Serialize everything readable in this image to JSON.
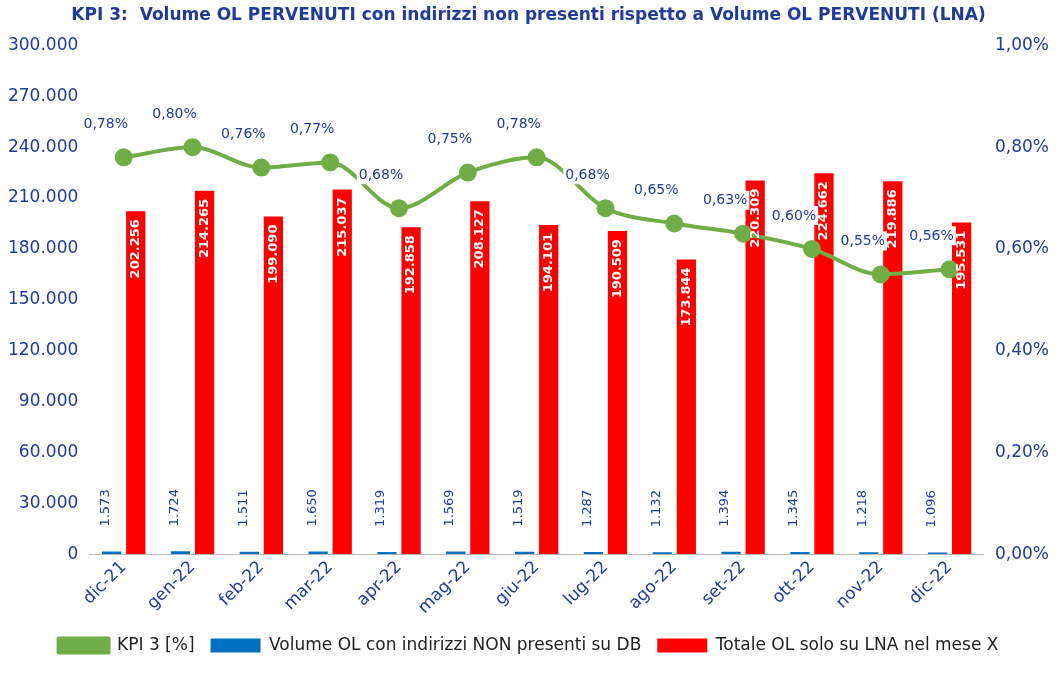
{
  "chart_data": {
    "type": "bar",
    "title": "KPI 3:  Volume OL PERVENUTI con indirizzi non presenti rispetto a Volume OL PERVENUTI (LNA)",
    "categories": [
      "dic-21",
      "gen-22",
      "feb-22",
      "mar-22",
      "apr-22",
      "mag-22",
      "giu-22",
      "lug-22",
      "ago-22",
      "set-22",
      "ott-22",
      "nov-22",
      "dic-22"
    ],
    "series": [
      {
        "name": "Volume OL con indirizzi NON presenti su DB",
        "color": "#0070c0",
        "values": [
          1573,
          1724,
          1511,
          1650,
          1319,
          1569,
          1519,
          1287,
          1132,
          1394,
          1345,
          1218,
          1096
        ],
        "value_labels": [
          "1.573",
          "1.724",
          "1.511",
          "1.650",
          "1.319",
          "1.569",
          "1.519",
          "1.287",
          "1.132",
          "1.394",
          "1.345",
          "1.218",
          "1.096"
        ]
      },
      {
        "name": "Totale OL solo su LNA nel mese X",
        "color": "#ff0000",
        "values": [
          202256,
          214265,
          199090,
          215037,
          192858,
          208127,
          194101,
          190509,
          173844,
          220309,
          224662,
          219886,
          195531
        ],
        "value_labels": [
          "202.256",
          "214.265",
          "199.090",
          "215.037",
          "192.858",
          "208.127",
          "194.101",
          "190.509",
          "173.844",
          "220.309",
          "224.662",
          "219.886",
          "195.531"
        ]
      },
      {
        "name": "KPI 3 [%]",
        "type": "line",
        "axis": "y2",
        "color": "#70ad47",
        "values": [
          0.78,
          0.8,
          0.76,
          0.77,
          0.68,
          0.75,
          0.78,
          0.68,
          0.65,
          0.63,
          0.6,
          0.55,
          0.56
        ],
        "value_labels": [
          "0,78%",
          "0,80%",
          "0,76%",
          "0,77%",
          "0,68%",
          "0,75%",
          "0,78%",
          "0,68%",
          "0,65%",
          "0,63%",
          "0,60%",
          "0,55%",
          "0,56%"
        ]
      }
    ],
    "ylim": [
      0,
      300000
    ],
    "yticks": [
      {
        "value": 0,
        "label": "0"
      },
      {
        "value": 30000,
        "label": "30.000"
      },
      {
        "value": 60000,
        "label": "60.000"
      },
      {
        "value": 90000,
        "label": "90.000"
      },
      {
        "value": 120000,
        "label": "120.000"
      },
      {
        "value": 150000,
        "label": "150.000"
      },
      {
        "value": 180000,
        "label": "180.000"
      },
      {
        "value": 210000,
        "label": "210.000"
      },
      {
        "value": 240000,
        "label": "240.000"
      },
      {
        "value": 270000,
        "label": "270.000"
      },
      {
        "value": 300000,
        "label": "300.000"
      }
    ],
    "y2lim": [
      0,
      1
    ],
    "y2ticks": [
      {
        "value": 0,
        "label": "0,00%"
      },
      {
        "value": 0.2,
        "label": "0,20%"
      },
      {
        "value": 0.4,
        "label": "0,40%"
      },
      {
        "value": 0.6,
        "label": "0,60%"
      },
      {
        "value": 0.8,
        "label": "0,80%"
      },
      {
        "value": 1,
        "label": "1,00%"
      }
    ],
    "grid": false,
    "legend": "bottom",
    "marker": "circle",
    "line_style": "solid"
  }
}
